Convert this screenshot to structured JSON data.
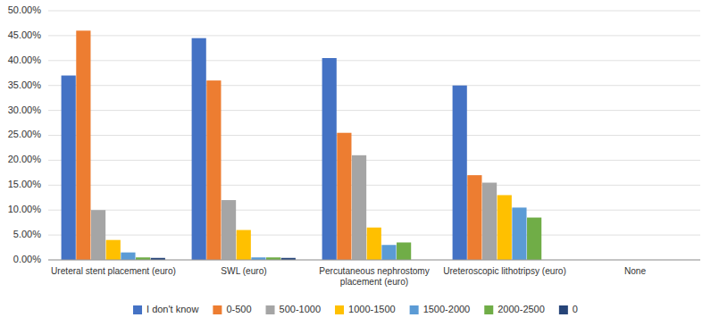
{
  "chart_data": {
    "type": "bar",
    "categories": [
      "Ureteral stent placement (euro)",
      "SWL (euro)",
      "Percutaneous nephrostomy\nplacement (euro)",
      "Ureteroscopic lithotripsy (euro)",
      "None"
    ],
    "series": [
      {
        "name": "I don't know",
        "color": "#4472C4",
        "values": [
          37.0,
          44.5,
          40.5,
          35.0,
          0.0
        ]
      },
      {
        "name": "0-500",
        "color": "#ED7D31",
        "values": [
          46.0,
          36.0,
          25.5,
          17.0,
          0.0
        ]
      },
      {
        "name": "500-1000",
        "color": "#A5A5A5",
        "values": [
          10.0,
          12.0,
          21.0,
          15.5,
          0.0
        ]
      },
      {
        "name": "1000-1500",
        "color": "#FFC000",
        "values": [
          4.0,
          6.0,
          6.5,
          13.0,
          0.0
        ]
      },
      {
        "name": "1500-2000",
        "color": "#5B9BD5",
        "values": [
          1.5,
          0.5,
          3.0,
          10.5,
          0.0
        ]
      },
      {
        "name": "2000-2500",
        "color": "#70AD47",
        "values": [
          0.5,
          0.5,
          3.5,
          8.5,
          0.0
        ]
      },
      {
        "name": "0",
        "color": "#264478",
        "values": [
          0.4,
          0.4,
          0.0,
          0.0,
          0.0
        ]
      }
    ],
    "ylim": [
      0,
      50
    ],
    "yticks": [
      {
        "value": 0,
        "label": "0.00%"
      },
      {
        "value": 5,
        "label": "5.00%"
      },
      {
        "value": 10,
        "label": "10.00%"
      },
      {
        "value": 15,
        "label": "15.00%"
      },
      {
        "value": 20,
        "label": "20.00%"
      },
      {
        "value": 25,
        "label": "25.00%"
      },
      {
        "value": 30,
        "label": "30.00%"
      },
      {
        "value": 35,
        "label": "35.00%"
      },
      {
        "value": 40,
        "label": "40.00%"
      },
      {
        "value": 45,
        "label": "45.00%"
      },
      {
        "value": 50,
        "label": "50.00%"
      }
    ],
    "grid": true,
    "legend": "bottom"
  }
}
